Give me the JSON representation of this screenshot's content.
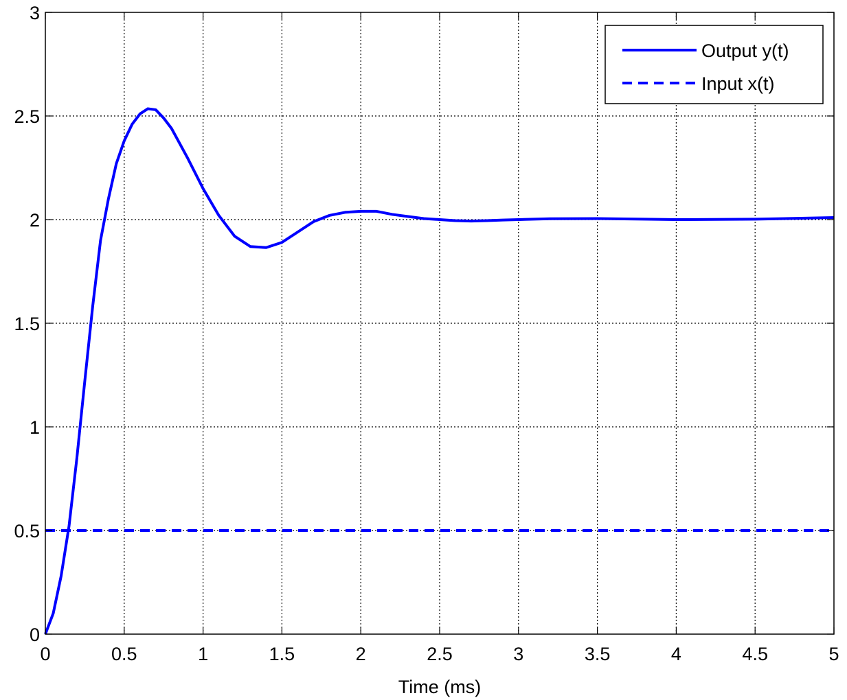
{
  "chart_data": {
    "type": "line",
    "title": "",
    "xlabel": "Time (ms)",
    "ylabel": "",
    "xlim": [
      0,
      5
    ],
    "ylim": [
      0,
      3
    ],
    "grid": true,
    "legend_position": "top-right",
    "x_ticks": [
      "0",
      "0.5",
      "1",
      "1.5",
      "2",
      "2.5",
      "3",
      "3.5",
      "4",
      "4.5",
      "5"
    ],
    "y_ticks": [
      "0",
      "0.5",
      "1",
      "1.5",
      "2",
      "2.5",
      "3"
    ],
    "series": [
      {
        "name": "Output y(t)",
        "style": "solid",
        "color": "#0000ff",
        "x": [
          0,
          0.05,
          0.1,
          0.15,
          0.2,
          0.25,
          0.3,
          0.35,
          0.4,
          0.45,
          0.5,
          0.55,
          0.6,
          0.65,
          0.7,
          0.75,
          0.8,
          0.9,
          1.0,
          1.1,
          1.2,
          1.3,
          1.4,
          1.5,
          1.6,
          1.7,
          1.8,
          1.9,
          2.0,
          2.1,
          2.2,
          2.3,
          2.4,
          2.5,
          2.6,
          2.7,
          2.8,
          2.9,
          3.0,
          3.2,
          3.5,
          3.8,
          4.0,
          4.5,
          5.0
        ],
        "y": [
          0.0,
          0.1,
          0.28,
          0.52,
          0.85,
          1.22,
          1.58,
          1.9,
          2.1,
          2.27,
          2.38,
          2.46,
          2.51,
          2.535,
          2.53,
          2.49,
          2.44,
          2.3,
          2.15,
          2.02,
          1.92,
          1.87,
          1.865,
          1.89,
          1.94,
          1.99,
          2.02,
          2.035,
          2.04,
          2.04,
          2.025,
          2.015,
          2.005,
          2.0,
          1.995,
          1.993,
          1.995,
          1.998,
          2.0,
          2.004,
          2.005,
          2.002,
          2.0,
          2.002,
          2.01
        ]
      },
      {
        "name": "Input x(t)",
        "style": "dashed",
        "color": "#0000ff",
        "x": [
          0,
          5
        ],
        "y": [
          0.5,
          0.5
        ]
      }
    ]
  }
}
